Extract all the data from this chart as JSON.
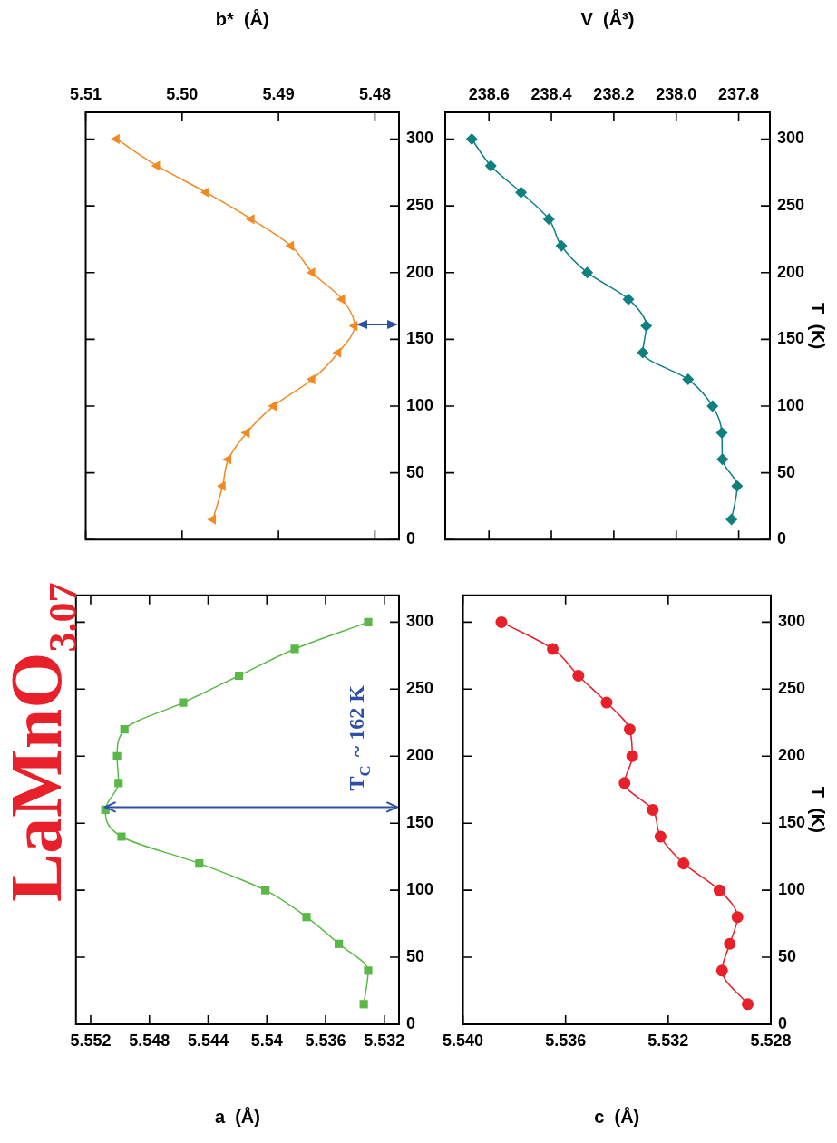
{
  "chart_data": [
    {
      "type": "line",
      "title": "LaMnO$_{3.07}$",
      "xlabel": "a  (Å)",
      "marker": "square",
      "ylim": [
        0,
        320
      ],
      "yticks": [
        0,
        50,
        100,
        150,
        200,
        250,
        300
      ],
      "xlim": [
        5.553,
        5.531
      ],
      "xticks": [
        5.552,
        5.548,
        5.544,
        5.54,
        5.536,
        5.532
      ],
      "series": [
        {
          "color": "#5ab946",
          "x": [
            5.5334,
            5.5331,
            5.5351,
            5.5373,
            5.5401,
            5.5446,
            5.5499,
            5.551,
            5.5501,
            5.5502,
            5.5497,
            5.5457,
            5.5419,
            5.5381,
            5.5331
          ],
          "values": [
            15,
            40,
            60,
            80,
            100,
            120,
            140,
            160,
            180,
            200,
            220,
            240,
            260,
            280,
            300
          ]
        }
      ],
      "ref_lines": [
        {
          "axis": "y",
          "value": 162,
          "label": "T$_{C}$ ~ 162 K",
          "color": "#2e4fa6"
        }
      ]
    },
    {
      "type": "line",
      "xlabel": "b*  (Å)",
      "marker": "triangle",
      "ylim": [
        0,
        320
      ],
      "yticks": [
        0,
        50,
        100,
        150,
        200,
        250,
        300
      ],
      "xlim": [
        5.51,
        5.4775
      ],
      "xticks": [
        5.51,
        {
          "value": 5.5,
          "label": "5.50"
        },
        5.49,
        5.48
      ],
      "series": [
        {
          "color": "#f28a22",
          "x": [
            5.4968,
            5.4958,
            5.4952,
            5.4933,
            5.4905,
            5.4865,
            5.4838,
            5.4821,
            5.4834,
            5.4865,
            5.4887,
            5.4928,
            5.4975,
            5.5026,
            5.5068
          ],
          "values": [
            15,
            40,
            60,
            80,
            100,
            120,
            140,
            160,
            180,
            200,
            220,
            240,
            260,
            280,
            300
          ]
        }
      ]
    },
    {
      "type": "line",
      "xlabel": "c  (Å)",
      "ylabel": "T  (K)",
      "marker": "circle",
      "ylim": [
        0,
        320
      ],
      "yticks": [
        0,
        50,
        100,
        150,
        200,
        250,
        300
      ],
      "xlim": [
        5.54,
        5.528
      ],
      "xticks": [
        {
          "value": 5.54,
          "label": "5.540"
        },
        5.536,
        5.532,
        5.528
      ],
      "series": [
        {
          "color": "#e8202a",
          "x": [
            5.5289,
            5.5299,
            5.5296,
            5.5293,
            5.53,
            5.5314,
            5.5323,
            5.5326,
            5.5337,
            5.5334,
            5.5335,
            5.5344,
            5.5355,
            5.5365,
            5.5385
          ],
          "values": [
            15,
            40,
            60,
            80,
            100,
            120,
            140,
            160,
            180,
            200,
            220,
            240,
            260,
            280,
            300
          ]
        }
      ]
    },
    {
      "type": "line",
      "xlabel": "V  (Å³)",
      "ylabel": "T  (K)",
      "marker": "diamond",
      "ylim": [
        0,
        320
      ],
      "yticks": [
        0,
        50,
        100,
        150,
        200,
        250,
        300
      ],
      "xlim": [
        238.74,
        237.7
      ],
      "xticks": [
        238.6,
        238.4,
        238.2,
        {
          "value": 238,
          "label": "238.0"
        },
        237.8
      ],
      "series": [
        {
          "color": "#0f8080",
          "x": [
            237.823,
            237.805,
            237.852,
            237.854,
            237.884,
            237.962,
            238.107,
            238.096,
            238.153,
            238.285,
            238.368,
            238.408,
            238.497,
            238.594,
            238.655
          ],
          "values": [
            15,
            40,
            60,
            80,
            100,
            120,
            140,
            160,
            180,
            200,
            220,
            240,
            260,
            280,
            300
          ]
        }
      ]
    }
  ]
}
